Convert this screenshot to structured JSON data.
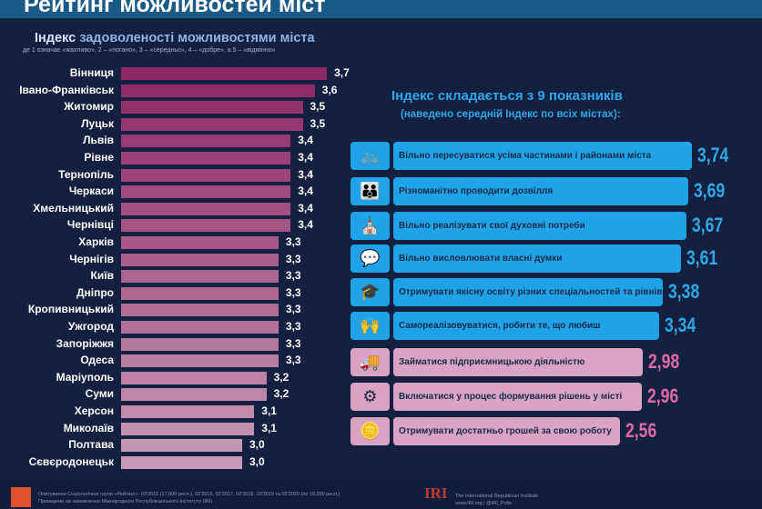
{
  "title": "Рейтинг можливостей міст",
  "chart_data": [
    {
      "type": "bar",
      "orientation": "horizontal",
      "title_bold": "Індекс",
      "title_rest": "задоволеності можливостями міста",
      "subtitle": "де 1 означає «жахливо», 2 – «погано», 3 – «середньо», 4 – «добре», а 5 – «відмінно»",
      "categories": [
        "Вінниця",
        "Івано-Франківськ",
        "Житомир",
        "Луцьк",
        "Львів",
        "Рівне",
        "Тернопіль",
        "Черкаси",
        "Хмельницький",
        "Чернівці",
        "Харків",
        "Чернігів",
        "Київ",
        "Дніпро",
        "Кропивницький",
        "Ужгород",
        "Запоріжжя",
        "Одеса",
        "Маріуполь",
        "Суми",
        "Херсон",
        "Миколаїв",
        "Полтава",
        "Сєвєродонецьк"
      ],
      "values": [
        3.7,
        3.6,
        3.5,
        3.5,
        3.4,
        3.4,
        3.4,
        3.4,
        3.4,
        3.4,
        3.3,
        3.3,
        3.3,
        3.3,
        3.3,
        3.3,
        3.3,
        3.3,
        3.2,
        3.2,
        3.1,
        3.1,
        3.0,
        3.0
      ],
      "labels": [
        "3,7",
        "3,6",
        "3,5",
        "3,5",
        "3,4",
        "3,4",
        "3,4",
        "3,4",
        "3,4",
        "3,4",
        "3,3",
        "3,3",
        "3,3",
        "3,3",
        "3,3",
        "3,3",
        "3,3",
        "3,3",
        "3,2",
        "3,2",
        "3,1",
        "3,1",
        "3,0",
        "3,0"
      ],
      "colors": {
        "top": "#8e2766",
        "bottom": "#c89ab8"
      }
    },
    {
      "type": "bar",
      "orientation": "horizontal",
      "title": "Індекс складається з 9 показників",
      "subtitle": "(наведено середній Індекс по всіх містах):",
      "categories": [
        "Вільно пересуватися усіма частинами і районами міста",
        "Різноманітно проводити дозвілля",
        "Вільно реалізувати свої духовні потреби",
        "Вільно висловлювати власні думки",
        "Отримувати якісну освіту різних спеціальностей та рівнів",
        "Самореалізовуватися, робити те, що любиш",
        "Займатися підприємницькою діяльністю",
        "Включатися у процес формування рішень у місті",
        "Отримувати достатньо грошей за свою роботу"
      ],
      "values": [
        3.74,
        3.69,
        3.67,
        3.61,
        3.38,
        3.34,
        2.98,
        2.96,
        2.56
      ],
      "labels": [
        "3,74",
        "3,69",
        "3,67",
        "3,61",
        "3,38",
        "3,34",
        "2,98",
        "2,96",
        "2,56"
      ],
      "icons": [
        "transport-icon",
        "family-icon",
        "spiritual-icon",
        "speech-icon",
        "graduation-cap-icon",
        "celebration-icon",
        "entrepreneur-icon",
        "gear-network-icon",
        "coins-icon"
      ],
      "colors": {
        "high": "#1fa3e6",
        "low": "#d9a3c6",
        "high_value": "#2fa8e8",
        "low_value": "#e06aa8"
      }
    }
  ],
  "footer": {
    "survey": "Опитування Соціологічної групи «Рейтинг»: 03'2015 (17,600 респ.), 02'2016, 02'2017, 02'2018, 10'2019 та 02'2020 (по 19,200 респ.)",
    "commission": "Проведене на замовлення Міжнародного Республіканського Інституту (IRI)",
    "iri_logo": "IRI",
    "iri_name": "The International Republican Institute",
    "iri_web": "www.IRI.org | @IRI_Polls"
  }
}
